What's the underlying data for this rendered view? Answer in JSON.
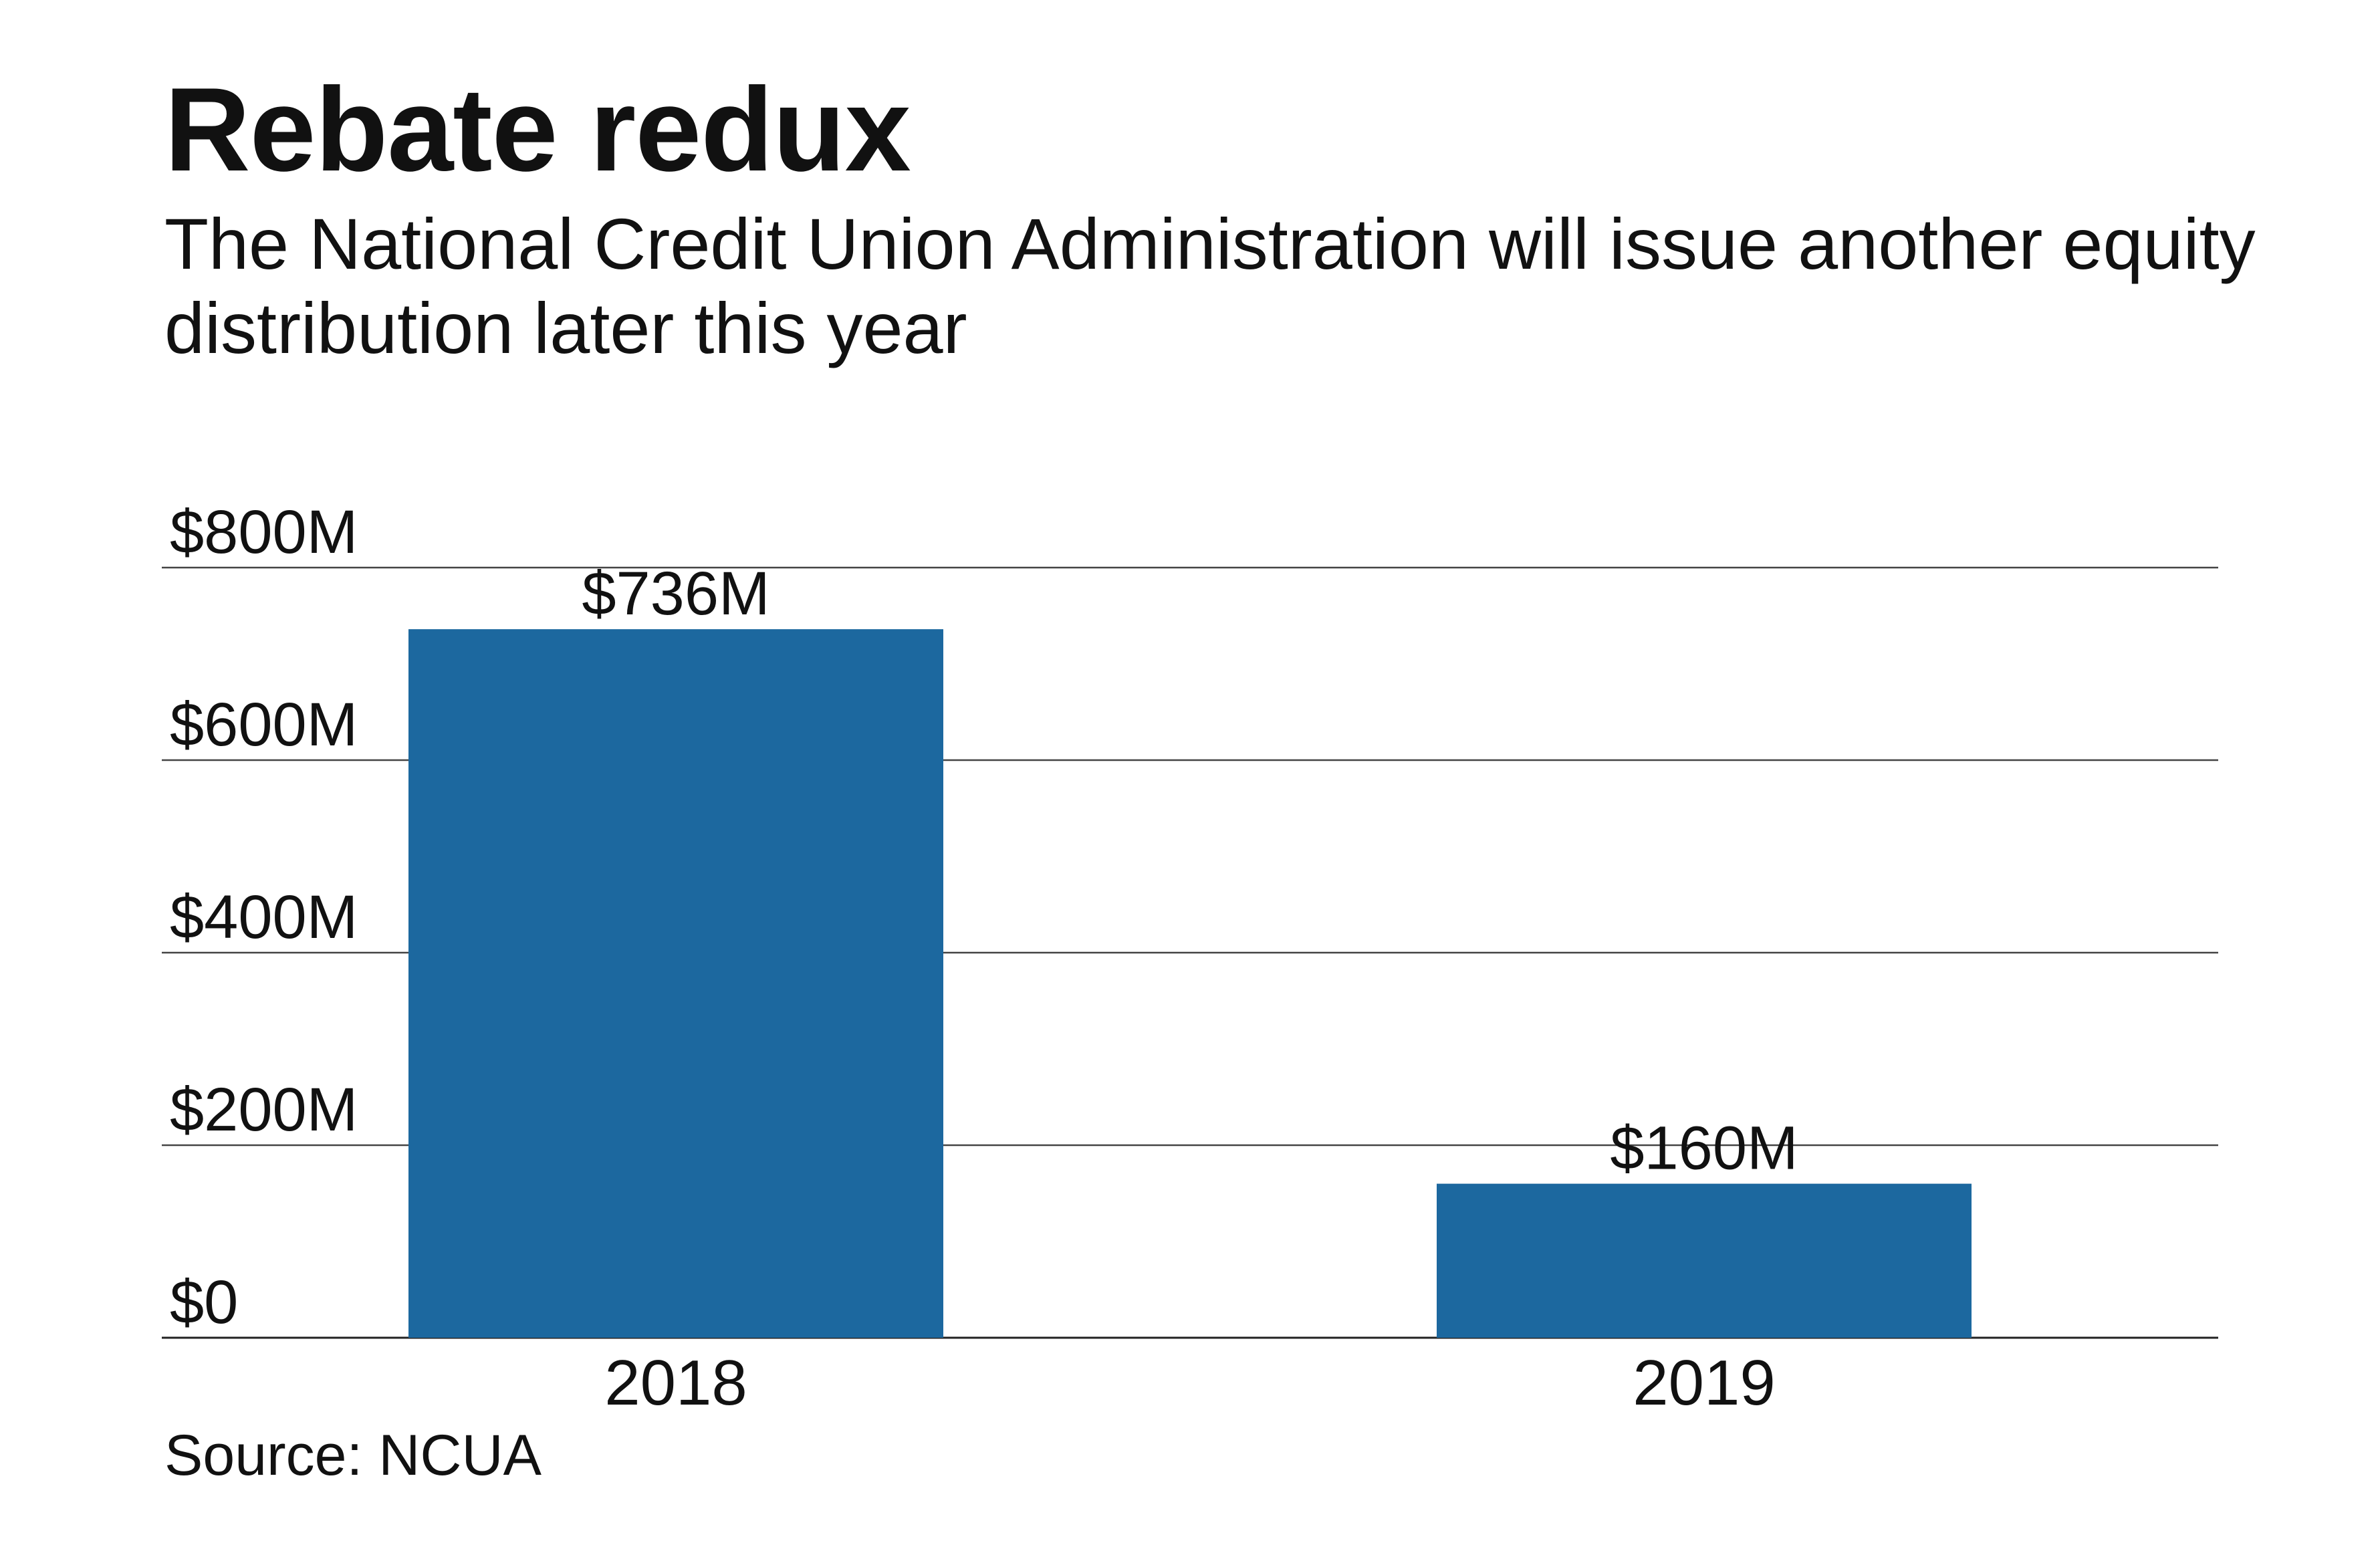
{
  "chart_data": {
    "type": "bar",
    "title": "Rebate redux",
    "subtitle": "The National Credit Union Administration will issue another equity distribution later this year",
    "categories": [
      "2018",
      "2019"
    ],
    "values": [
      736,
      160
    ],
    "value_labels": [
      "$736M",
      "$160M"
    ],
    "ylim": [
      0,
      800
    ],
    "yticks": [
      0,
      200,
      400,
      600,
      800
    ],
    "ytick_labels": [
      "$0",
      "$200M",
      "$400M",
      "$600M",
      "$800M"
    ],
    "grid": true,
    "legend": "none",
    "source": "Source: NCUA",
    "bar_color": "#1c689f"
  }
}
